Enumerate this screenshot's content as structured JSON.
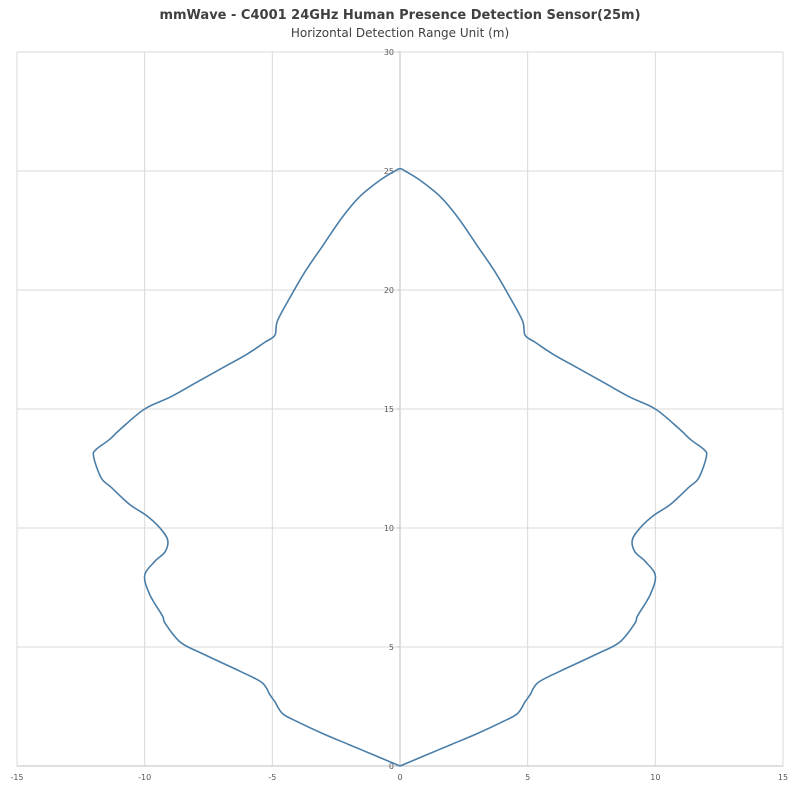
{
  "chart_data": {
    "type": "line",
    "title": "mmWave - C4001 24GHz Human Presence Detection Sensor(25m)",
    "subtitle": "Horizontal Detection Range Unit (m)",
    "xlim": [
      -15,
      15
    ],
    "ylim": [
      0,
      30
    ],
    "x_ticks": [
      -15,
      -10,
      -5,
      0,
      5,
      10,
      15
    ],
    "y_ticks": [
      0,
      5,
      10,
      15,
      20,
      25,
      30
    ],
    "grid": true,
    "line_color": "#4a7ea8",
    "gridline_color": "#d9d9d9",
    "series": [
      {
        "x": [
          0,
          -1,
          -2,
          -3,
          -4,
          -4.6,
          -4.9,
          -5.1,
          -5.4,
          -6.3,
          -7.7,
          -8.6,
          -9.2,
          -9.3,
          -9.8,
          -10.0,
          -9.6,
          -9.2,
          -9.1,
          -9.4,
          -9.9,
          -10.6,
          -11.3,
          -11.7,
          -12.0,
          -11.9,
          -11.4,
          -10.9,
          -10.0,
          -9.0,
          -8.0,
          -7.0,
          -6.0,
          -5.3,
          -4.9,
          -4.8,
          -4.3,
          -3.7,
          -3.0,
          -2.3,
          -1.6,
          -0.8,
          -0.2,
          0,
          0.2,
          0.8,
          1.6,
          2.3,
          3.0,
          3.7,
          4.3,
          4.8,
          4.9,
          5.3,
          6.0,
          7.0,
          8.0,
          9.0,
          10.0,
          10.9,
          11.4,
          11.9,
          12.0,
          11.7,
          11.3,
          10.6,
          9.9,
          9.4,
          9.1,
          9.2,
          9.6,
          10.0,
          9.8,
          9.3,
          9.2,
          8.6,
          7.7,
          6.3,
          5.4,
          5.1,
          4.9,
          4.6,
          4.0,
          3.0,
          2.0,
          1.0,
          0
        ],
        "y": [
          0,
          0.45,
          0.9,
          1.35,
          1.85,
          2.2,
          2.7,
          3.0,
          3.5,
          4.0,
          4.7,
          5.2,
          6.0,
          6.3,
          7.2,
          8.0,
          8.6,
          9.0,
          9.5,
          10.0,
          10.5,
          11.0,
          11.7,
          12.1,
          13.0,
          13.3,
          13.7,
          14.2,
          15.0,
          15.5,
          16.1,
          16.7,
          17.3,
          17.8,
          18.1,
          18.7,
          19.7,
          20.8,
          21.9,
          23.0,
          23.9,
          24.6,
          25.0,
          25.1,
          25.0,
          24.6,
          23.9,
          23.0,
          21.9,
          20.8,
          19.7,
          18.7,
          18.1,
          17.8,
          17.3,
          16.7,
          16.1,
          15.5,
          15.0,
          14.2,
          13.7,
          13.3,
          13.0,
          12.1,
          11.7,
          11.0,
          10.5,
          10.0,
          9.5,
          9.0,
          8.6,
          8.0,
          7.2,
          6.3,
          6.0,
          5.2,
          4.7,
          4.0,
          3.5,
          3.0,
          2.7,
          2.2,
          1.85,
          1.35,
          0.9,
          0.45,
          0
        ]
      }
    ]
  }
}
